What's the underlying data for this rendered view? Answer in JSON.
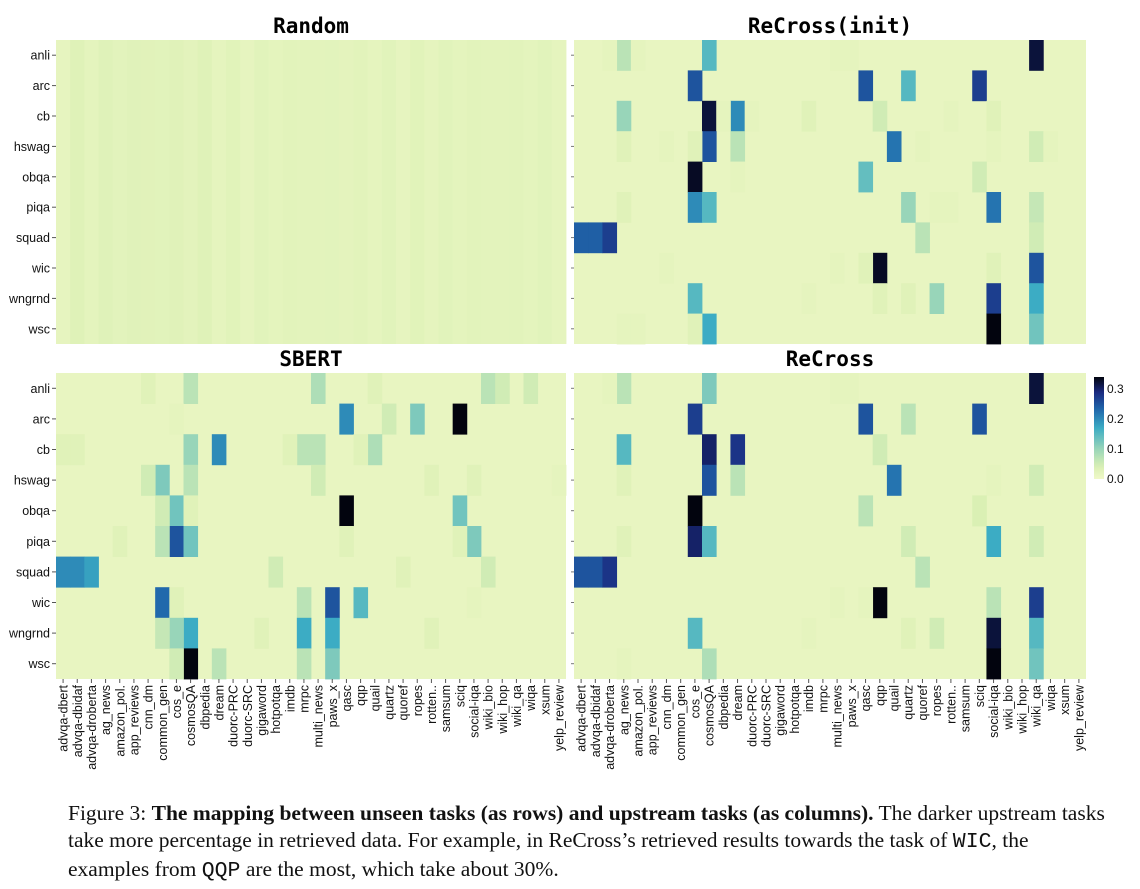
{
  "chart_data": [
    {
      "type": "heatmap",
      "title": "Random",
      "rows": [
        "anli",
        "arc",
        "cb",
        "hswag",
        "obqa",
        "piqa",
        "squad",
        "wic",
        "wngrnd",
        "wsc"
      ],
      "columns": [
        "advqa-dbert",
        "advqa-dbidaf",
        "advqa-droberta",
        "ag_news",
        "amazon_pol.",
        "app_reviews",
        "cnn_dm",
        "common_gen",
        "cos_e",
        "cosmosQA",
        "dbpedia",
        "dream",
        "duorc-PRC",
        "duorc-SRC",
        "gigaword",
        "hotpotqa",
        "imdb",
        "mrpc",
        "multi_news",
        "paws_x",
        "qasc",
        "qqp",
        "quail",
        "quartz",
        "quoref",
        "ropes",
        "rotten..",
        "samsum",
        "sciq",
        "social-iqa",
        "wiki_bio",
        "wiki_hop",
        "wiki_qa",
        "wiqa",
        "xsum",
        "yelp_review"
      ],
      "cells": []
    },
    {
      "type": "heatmap",
      "title": "ReCross(init)",
      "cells": [
        [
          "anli",
          3,
          0.07
        ],
        [
          "anli",
          9,
          0.15
        ],
        [
          "anli",
          32,
          0.32
        ],
        [
          "anli",
          2,
          0.02
        ],
        [
          "anli",
          4,
          0.02
        ],
        [
          "anli",
          18,
          0.02
        ],
        [
          "anli",
          19,
          0.02
        ],
        [
          "arc",
          8,
          0.25
        ],
        [
          "arc",
          20,
          0.25
        ],
        [
          "arc",
          23,
          0.15
        ],
        [
          "arc",
          28,
          0.27
        ],
        [
          "cb",
          9,
          0.32
        ],
        [
          "cb",
          11,
          0.2
        ],
        [
          "cb",
          3,
          0.1
        ],
        [
          "cb",
          16,
          0.03
        ],
        [
          "cb",
          21,
          0.05
        ],
        [
          "cb",
          10,
          0.02
        ],
        [
          "cb",
          12,
          0.02
        ],
        [
          "cb",
          26,
          0.02
        ],
        [
          "cb",
          29,
          0.03
        ],
        [
          "hswag",
          9,
          0.25
        ],
        [
          "hswag",
          22,
          0.22
        ],
        [
          "hswag",
          11,
          0.07
        ],
        [
          "hswag",
          3,
          0.03
        ],
        [
          "hswag",
          6,
          0.02
        ],
        [
          "hswag",
          8,
          0.03
        ],
        [
          "hswag",
          24,
          0.02
        ],
        [
          "hswag",
          32,
          0.05
        ],
        [
          "hswag",
          29,
          0.02
        ],
        [
          "hswag",
          33,
          0.02
        ],
        [
          "obqa",
          8,
          0.33
        ],
        [
          "obqa",
          20,
          0.14
        ],
        [
          "obqa",
          28,
          0.05
        ],
        [
          "obqa",
          11,
          0.02
        ],
        [
          "piqa",
          8,
          0.2
        ],
        [
          "piqa",
          9,
          0.15
        ],
        [
          "piqa",
          29,
          0.22
        ],
        [
          "piqa",
          23,
          0.1
        ],
        [
          "piqa",
          32,
          0.06
        ],
        [
          "piqa",
          3,
          0.03
        ],
        [
          "piqa",
          26,
          0.02
        ],
        [
          "piqa",
          25,
          0.02
        ],
        [
          "squad",
          0,
          0.24
        ],
        [
          "squad",
          1,
          0.24
        ],
        [
          "squad",
          2,
          0.27
        ],
        [
          "squad",
          24,
          0.07
        ],
        [
          "squad",
          32,
          0.05
        ],
        [
          "wic",
          21,
          0.33
        ],
        [
          "wic",
          32,
          0.25
        ],
        [
          "wic",
          29,
          0.03
        ],
        [
          "wic",
          20,
          0.03
        ],
        [
          "wic",
          18,
          0.02
        ],
        [
          "wic",
          6,
          0.02
        ],
        [
          "wngrnd",
          8,
          0.15
        ],
        [
          "wngrnd",
          29,
          0.27
        ],
        [
          "wngrnd",
          32,
          0.17
        ],
        [
          "wngrnd",
          25,
          0.1
        ],
        [
          "wngrnd",
          21,
          0.03
        ],
        [
          "wngrnd",
          23,
          0.03
        ],
        [
          "wngrnd",
          16,
          0.02
        ],
        [
          "wsc",
          9,
          0.17
        ],
        [
          "wsc",
          29,
          0.34
        ],
        [
          "wsc",
          32,
          0.13
        ],
        [
          "wsc",
          3,
          0.02
        ],
        [
          "wsc",
          4,
          0.02
        ],
        [
          "wsc",
          8,
          0.03
        ]
      ]
    },
    {
      "type": "heatmap",
      "title": "SBERT",
      "cells": [
        [
          "anli",
          18,
          0.08
        ],
        [
          "anli",
          30,
          0.07
        ],
        [
          "anli",
          33,
          0.05
        ],
        [
          "anli",
          9,
          0.07
        ],
        [
          "anli",
          6,
          0.03
        ],
        [
          "anli",
          22,
          0.03
        ],
        [
          "anli",
          31,
          0.05
        ],
        [
          "arc",
          20,
          0.2
        ],
        [
          "arc",
          28,
          0.34
        ],
        [
          "arc",
          25,
          0.12
        ],
        [
          "arc",
          23,
          0.05
        ],
        [
          "arc",
          8,
          0.02
        ],
        [
          "cb",
          11,
          0.2
        ],
        [
          "cb",
          9,
          0.1
        ],
        [
          "cb",
          17,
          0.07
        ],
        [
          "cb",
          18,
          0.07
        ],
        [
          "cb",
          22,
          0.08
        ],
        [
          "cb",
          0,
          0.03
        ],
        [
          "cb",
          1,
          0.03
        ],
        [
          "cb",
          16,
          0.03
        ],
        [
          "cb",
          21,
          0.03
        ],
        [
          "hswag",
          7,
          0.12
        ],
        [
          "hswag",
          9,
          0.07
        ],
        [
          "hswag",
          18,
          0.05
        ],
        [
          "hswag",
          6,
          0.05
        ],
        [
          "hswag",
          26,
          0.03
        ],
        [
          "hswag",
          35,
          0.02
        ],
        [
          "hswag",
          29,
          0.03
        ],
        [
          "obqa",
          20,
          0.34
        ],
        [
          "obqa",
          8,
          0.13
        ],
        [
          "obqa",
          28,
          0.13
        ],
        [
          "obqa",
          7,
          0.05
        ],
        [
          "obqa",
          9,
          0.03
        ],
        [
          "piqa",
          8,
          0.25
        ],
        [
          "piqa",
          9,
          0.13
        ],
        [
          "piqa",
          29,
          0.12
        ],
        [
          "piqa",
          7,
          0.07
        ],
        [
          "piqa",
          4,
          0.03
        ],
        [
          "piqa",
          28,
          0.03
        ],
        [
          "piqa",
          20,
          0.03
        ],
        [
          "squad",
          0,
          0.2
        ],
        [
          "squad",
          1,
          0.2
        ],
        [
          "squad",
          2,
          0.18
        ],
        [
          "squad",
          15,
          0.05
        ],
        [
          "squad",
          30,
          0.05
        ],
        [
          "squad",
          24,
          0.03
        ],
        [
          "wic",
          7,
          0.23
        ],
        [
          "wic",
          19,
          0.25
        ],
        [
          "wic",
          21,
          0.15
        ],
        [
          "wic",
          17,
          0.07
        ],
        [
          "wic",
          8,
          0.03
        ],
        [
          "wic",
          29,
          0.02
        ],
        [
          "wngrnd",
          9,
          0.17
        ],
        [
          "wngrnd",
          8,
          0.1
        ],
        [
          "wngrnd",
          17,
          0.17
        ],
        [
          "wngrnd",
          19,
          0.17
        ],
        [
          "wngrnd",
          7,
          0.06
        ],
        [
          "wngrnd",
          14,
          0.03
        ],
        [
          "wngrnd",
          26,
          0.03
        ],
        [
          "wsc",
          9,
          0.34
        ],
        [
          "wsc",
          8,
          0.05
        ],
        [
          "wsc",
          11,
          0.07
        ],
        [
          "wsc",
          17,
          0.07
        ],
        [
          "wsc",
          19,
          0.12
        ]
      ]
    },
    {
      "type": "heatmap",
      "title": "ReCross",
      "cells": [
        [
          "anli",
          3,
          0.07
        ],
        [
          "anli",
          9,
          0.12
        ],
        [
          "anli",
          32,
          0.32
        ],
        [
          "anli",
          2,
          0.02
        ],
        [
          "anli",
          18,
          0.02
        ],
        [
          "anli",
          19,
          0.02
        ],
        [
          "arc",
          8,
          0.27
        ],
        [
          "arc",
          20,
          0.25
        ],
        [
          "arc",
          23,
          0.07
        ],
        [
          "arc",
          28,
          0.25
        ],
        [
          "cb",
          9,
          0.3
        ],
        [
          "cb",
          11,
          0.28
        ],
        [
          "cb",
          3,
          0.15
        ],
        [
          "cb",
          21,
          0.05
        ],
        [
          "hswag",
          9,
          0.25
        ],
        [
          "hswag",
          22,
          0.22
        ],
        [
          "hswag",
          11,
          0.07
        ],
        [
          "hswag",
          3,
          0.03
        ],
        [
          "hswag",
          32,
          0.05
        ],
        [
          "hswag",
          29,
          0.02
        ],
        [
          "obqa",
          8,
          0.34
        ],
        [
          "obqa",
          20,
          0.07
        ],
        [
          "obqa",
          28,
          0.04
        ],
        [
          "piqa",
          8,
          0.3
        ],
        [
          "piqa",
          9,
          0.15
        ],
        [
          "piqa",
          29,
          0.17
        ],
        [
          "piqa",
          23,
          0.05
        ],
        [
          "piqa",
          32,
          0.05
        ],
        [
          "piqa",
          3,
          0.03
        ],
        [
          "squad",
          0,
          0.25
        ],
        [
          "squad",
          1,
          0.25
        ],
        [
          "squad",
          2,
          0.28
        ],
        [
          "squad",
          24,
          0.07
        ],
        [
          "wic",
          21,
          0.34
        ],
        [
          "wic",
          32,
          0.27
        ],
        [
          "wic",
          29,
          0.07
        ],
        [
          "wic",
          18,
          0.02
        ],
        [
          "wic",
          20,
          0.02
        ],
        [
          "wngrnd",
          8,
          0.15
        ],
        [
          "wngrnd",
          29,
          0.32
        ],
        [
          "wngrnd",
          32,
          0.15
        ],
        [
          "wngrnd",
          25,
          0.05
        ],
        [
          "wngrnd",
          23,
          0.03
        ],
        [
          "wngrnd",
          16,
          0.02
        ],
        [
          "wsc",
          9,
          0.08
        ],
        [
          "wsc",
          29,
          0.34
        ],
        [
          "wsc",
          32,
          0.13
        ],
        [
          "wsc",
          3,
          0.02
        ]
      ]
    }
  ],
  "colorbar": {
    "ticks": [
      "0.3",
      "0.2",
      "0.1",
      "0.0"
    ],
    "tick_values": [
      0.3,
      0.2,
      0.1,
      0.0
    ],
    "max": 0.34
  },
  "caption": {
    "label": "Figure 3:",
    "bold": "The mapping between unseen tasks (as rows) and upstream tasks (as columns).",
    "text_a": " The darker upstream tasks take more percentage in retrieved data. For example, in ReCross’s retrieved results towards the task of ",
    "code_a": "WIC",
    "text_b": ", the examples from ",
    "code_b": "QQP",
    "text_c": " are the most, which take about 30%."
  }
}
